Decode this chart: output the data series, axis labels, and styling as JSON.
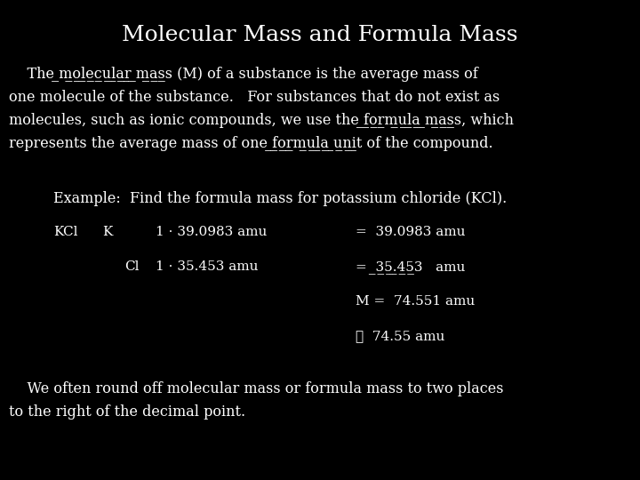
{
  "background_color": "#000000",
  "text_color": "#ffffff",
  "title": "Molecular Mass and Formula Mass",
  "title_fontsize": 18,
  "body_fontsize": 11.5,
  "small_fontsize": 11.0,
  "font_family": "serif",
  "figsize": [
    7.2,
    5.4
  ],
  "dpi": 100
}
